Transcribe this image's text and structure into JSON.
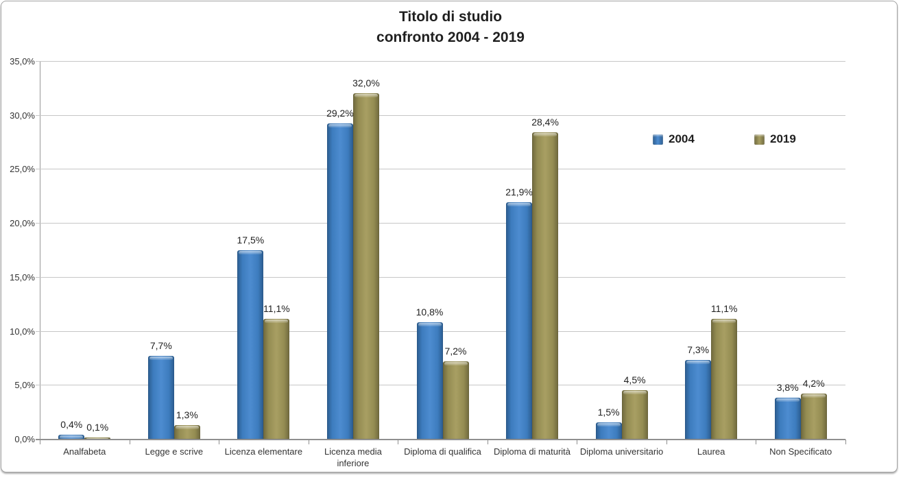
{
  "chart_data": {
    "type": "bar",
    "title_line1": "Titolo di studio",
    "title_line2": "confronto 2004 - 2019",
    "categories": [
      "Analfabeta",
      "Legge e scrive",
      "Licenza elementare",
      "Licenza media inferiore",
      "Diploma di qualifica",
      "Diploma di maturità",
      "Diploma universitario",
      "Laurea",
      "Non Specificato"
    ],
    "series": [
      {
        "name": "2004",
        "color": "#3d7cbe",
        "color_dark": "#2b5c8e",
        "color_light": "#4d8cd0",
        "values": [
          0.4,
          7.7,
          17.5,
          29.2,
          10.8,
          21.9,
          1.5,
          7.3,
          3.8
        ],
        "labels": [
          "0,4%",
          "7,7%",
          "17,5%",
          "29,2%",
          "10,8%",
          "21,9%",
          "1,5%",
          "7,3%",
          "3,8%"
        ]
      },
      {
        "name": "2019",
        "color": "#948c52",
        "color_dark": "#6e683d",
        "color_light": "#a89f63",
        "values": [
          0.1,
          1.3,
          11.1,
          32.0,
          7.2,
          28.4,
          4.5,
          11.1,
          4.2
        ],
        "labels": [
          "0,1%",
          "1,3%",
          "11,1%",
          "32,0%",
          "7,2%",
          "28,4%",
          "4,5%",
          "11,1%",
          "4,2%"
        ]
      }
    ],
    "y_ticks": [
      "0,0%",
      "5,0%",
      "10,0%",
      "15,0%",
      "20,0%",
      "25,0%",
      "30,0%",
      "35,0%"
    ],
    "ylim": [
      0,
      35
    ],
    "grid": true,
    "legend_position": "inside-top-right",
    "grid_color": "#c6c6c6",
    "axis_color": "#8f8f8f",
    "text_color": "#333333"
  }
}
